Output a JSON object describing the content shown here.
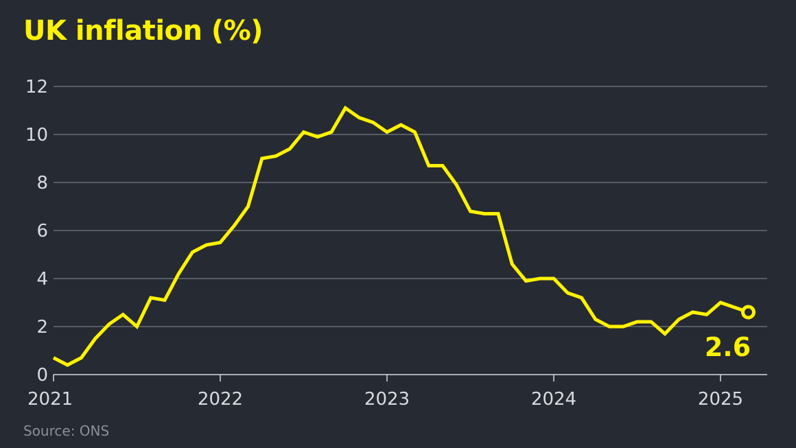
{
  "title": "UK inflation (%)",
  "source": "Source: ONS",
  "colors": {
    "background": "#262a33",
    "line": "#fff200",
    "grid": "#8a8f99",
    "tick_text": "#d9dbe0",
    "source_text": "#8a8f99"
  },
  "chart_data": {
    "type": "line",
    "title": "UK inflation (%)",
    "xlabel": "",
    "ylabel": "",
    "ylim": [
      0,
      12
    ],
    "yticks": [
      "0",
      "2",
      "4",
      "6",
      "8",
      "10",
      "12"
    ],
    "xticks": [
      "2021",
      "2022",
      "2023",
      "2024",
      "2025"
    ],
    "grid": true,
    "series": [
      {
        "values": [
          {
            "x": "2021-01",
            "y": 0.7
          },
          {
            "x": "2021-02",
            "y": 0.4
          },
          {
            "x": "2021-03",
            "y": 0.7
          },
          {
            "x": "2021-04",
            "y": 1.5
          },
          {
            "x": "2021-05",
            "y": 2.1
          },
          {
            "x": "2021-06",
            "y": 2.5
          },
          {
            "x": "2021-07",
            "y": 2.0
          },
          {
            "x": "2021-08",
            "y": 3.2
          },
          {
            "x": "2021-09",
            "y": 3.1
          },
          {
            "x": "2021-10",
            "y": 4.2
          },
          {
            "x": "2021-11",
            "y": 5.1
          },
          {
            "x": "2021-12",
            "y": 5.4
          },
          {
            "x": "2022-01",
            "y": 5.5
          },
          {
            "x": "2022-02",
            "y": 6.2
          },
          {
            "x": "2022-03",
            "y": 7.0
          },
          {
            "x": "2022-04",
            "y": 9.0
          },
          {
            "x": "2022-05",
            "y": 9.1
          },
          {
            "x": "2022-06",
            "y": 9.4
          },
          {
            "x": "2022-07",
            "y": 10.1
          },
          {
            "x": "2022-08",
            "y": 9.9
          },
          {
            "x": "2022-09",
            "y": 10.1
          },
          {
            "x": "2022-10",
            "y": 11.1
          },
          {
            "x": "2022-11",
            "y": 10.7
          },
          {
            "x": "2022-12",
            "y": 10.5
          },
          {
            "x": "2023-01",
            "y": 10.1
          },
          {
            "x": "2023-02",
            "y": 10.4
          },
          {
            "x": "2023-03",
            "y": 10.1
          },
          {
            "x": "2023-04",
            "y": 8.7
          },
          {
            "x": "2023-05",
            "y": 8.7
          },
          {
            "x": "2023-06",
            "y": 7.9
          },
          {
            "x": "2023-07",
            "y": 6.8
          },
          {
            "x": "2023-08",
            "y": 6.7
          },
          {
            "x": "2023-09",
            "y": 6.7
          },
          {
            "x": "2023-10",
            "y": 4.6
          },
          {
            "x": "2023-11",
            "y": 3.9
          },
          {
            "x": "2023-12",
            "y": 4.0
          },
          {
            "x": "2024-01",
            "y": 4.0
          },
          {
            "x": "2024-02",
            "y": 3.4
          },
          {
            "x": "2024-03",
            "y": 3.2
          },
          {
            "x": "2024-04",
            "y": 2.3
          },
          {
            "x": "2024-05",
            "y": 2.0
          },
          {
            "x": "2024-06",
            "y": 2.0
          },
          {
            "x": "2024-07",
            "y": 2.2
          },
          {
            "x": "2024-08",
            "y": 2.2
          },
          {
            "x": "2024-09",
            "y": 1.7
          },
          {
            "x": "2024-10",
            "y": 2.3
          },
          {
            "x": "2024-11",
            "y": 2.6
          },
          {
            "x": "2024-12",
            "y": 2.5
          },
          {
            "x": "2025-01",
            "y": 3.0
          },
          {
            "x": "2025-02",
            "y": 2.8
          },
          {
            "x": "2025-03",
            "y": 2.6
          }
        ]
      }
    ],
    "annotations": [
      {
        "x": "2025-03",
        "y": 2.6,
        "text": "2.6",
        "marker": "hollow-circle"
      }
    ]
  }
}
